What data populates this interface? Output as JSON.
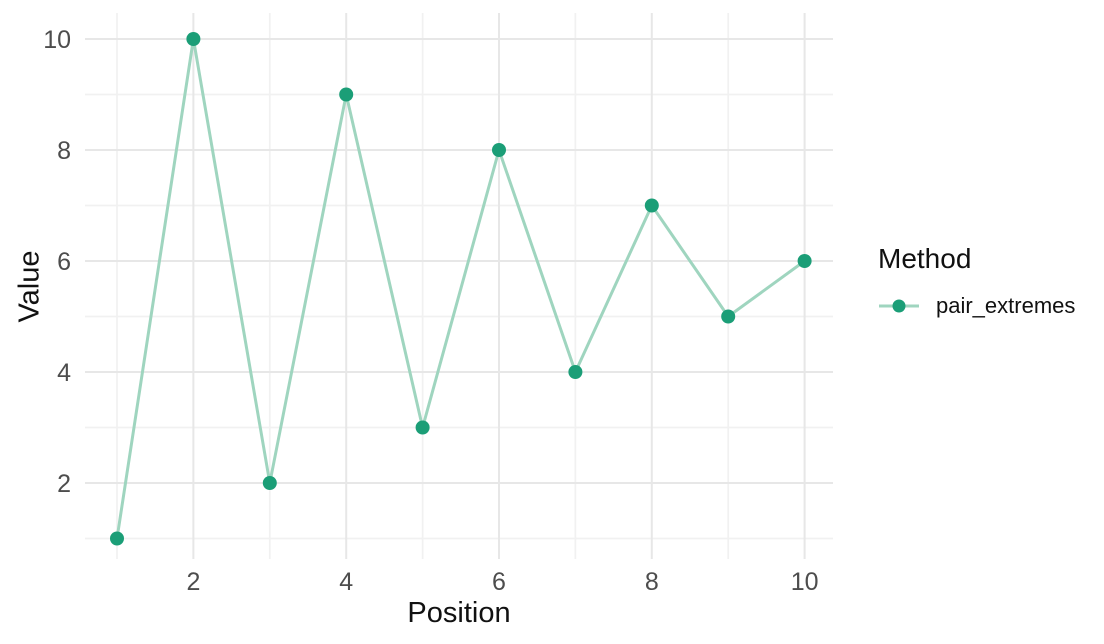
{
  "chart_data": {
    "type": "line",
    "title": "",
    "xlabel": "Position",
    "ylabel": "Value",
    "x": [
      1,
      2,
      3,
      4,
      5,
      6,
      7,
      8,
      9,
      10
    ],
    "series": [
      {
        "name": "pair_extremes",
        "values": [
          1,
          10,
          2,
          9,
          3,
          8,
          4,
          7,
          5,
          6
        ]
      }
    ],
    "xlim": [
      0.55,
      10.45
    ],
    "ylim": [
      0.55,
      10.45
    ],
    "x_ticks": [
      2,
      4,
      6,
      8,
      10
    ],
    "y_ticks": [
      2,
      4,
      6,
      8,
      10
    ],
    "x_minor_ticks": [
      1,
      3,
      5,
      7,
      9
    ],
    "y_minor_ticks": [
      1,
      3,
      5,
      7,
      9
    ],
    "x_tick_labels": [
      "2",
      "4",
      "6",
      "8",
      "10"
    ],
    "y_tick_labels": [
      "2",
      "4",
      "6",
      "8",
      "10"
    ],
    "grid": true,
    "legend_title": "Method",
    "legend_position": "right",
    "colors": {
      "point": "#1B9E77",
      "line": "#9FD5BF",
      "grid_major": "#E7E7E7",
      "grid_minor": "#F1F1F1",
      "tick_label": "#4D4D4D",
      "axis_title": "#111111",
      "background": "#FFFFFF"
    }
  }
}
